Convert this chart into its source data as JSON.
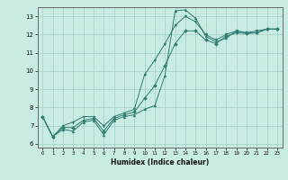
{
  "title": "",
  "xlabel": "Humidex (Indice chaleur)",
  "xlim": [
    -0.5,
    23.5
  ],
  "ylim": [
    5.8,
    13.5
  ],
  "xticks": [
    0,
    1,
    2,
    3,
    4,
    5,
    6,
    7,
    8,
    9,
    10,
    11,
    12,
    13,
    14,
    15,
    16,
    17,
    18,
    19,
    20,
    21,
    22,
    23
  ],
  "yticks": [
    6,
    7,
    8,
    9,
    10,
    11,
    12,
    13
  ],
  "bg_color": "#c8ebe4",
  "line_color": "#2e7d6e",
  "grid_color": "#aad4cc",
  "line1_y": [
    7.5,
    6.4,
    6.8,
    6.7,
    7.2,
    7.3,
    6.5,
    7.3,
    7.5,
    7.6,
    7.9,
    8.1,
    9.75,
    13.3,
    13.35,
    12.9,
    11.9,
    11.6,
    11.8,
    12.2,
    12.1,
    12.1,
    12.3,
    12.3
  ],
  "line2_y": [
    7.5,
    6.4,
    7.0,
    7.2,
    7.5,
    7.5,
    7.0,
    7.5,
    7.7,
    7.9,
    9.8,
    10.6,
    11.5,
    12.5,
    13.0,
    12.7,
    12.0,
    11.7,
    12.0,
    12.2,
    12.1,
    12.2,
    12.3,
    12.3
  ],
  "line3_y": [
    7.5,
    6.4,
    6.9,
    6.9,
    7.3,
    7.4,
    6.7,
    7.4,
    7.6,
    7.75,
    8.5,
    9.2,
    10.3,
    11.5,
    12.2,
    12.2,
    11.7,
    11.5,
    11.9,
    12.1,
    12.05,
    12.1,
    12.3,
    12.3
  ]
}
